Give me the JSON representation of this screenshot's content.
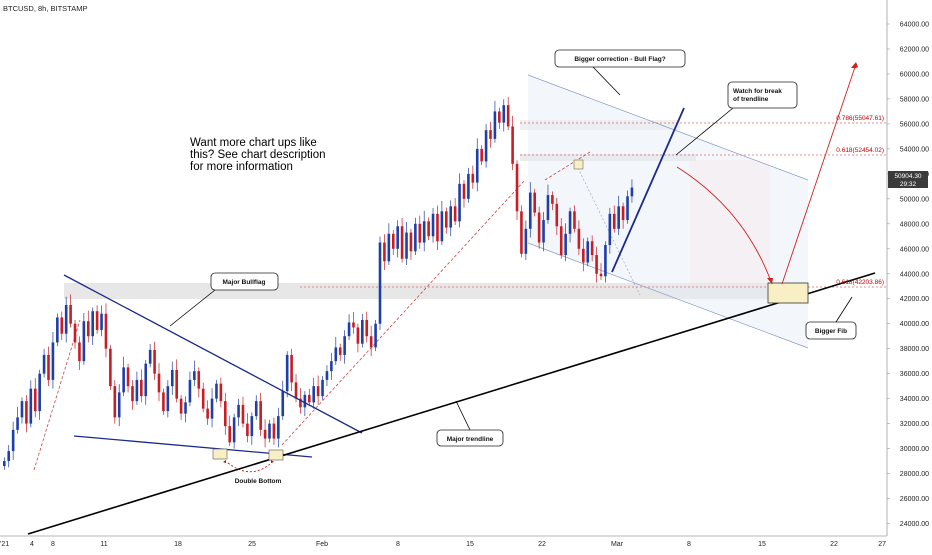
{
  "header": {
    "title": "BTCUSD, 8h, BITSTAMP"
  },
  "headline": [
    "Want more chart ups like",
    "this? See chart description",
    "for more information"
  ],
  "annotations": {
    "bull_flag_question": "Bigger correction - Bull Flag?",
    "watch_break_1": "Watch for break",
    "watch_break_2": "of trendline",
    "major_bullflag": "Major Bullflag",
    "major_trendline": "Major trendline",
    "double_bottom": "Double Bottom",
    "bigger_fib": "Bigger Fib"
  },
  "fib_levels": [
    {
      "label": "0.786(55047.61)",
      "price": 55047.61
    },
    {
      "label": "0.618(52454.02)",
      "price": 52454.02
    },
    {
      "label": "0.618(42203.86)",
      "price": 42203.86
    }
  ],
  "price_tag": {
    "price": "50904.30",
    "countdown": "29:32"
  },
  "colors": {
    "up": "#1f3fa8",
    "down": "#c81d25",
    "trendline": "#000000",
    "flag": "#1b2a8c",
    "fib": "#c40000",
    "tag_bg": "#3b3b3b"
  },
  "chart_data": {
    "type": "candlestick",
    "symbol": "BTCUSD",
    "interval": "8h",
    "exchange": "BITSTAMP",
    "ylim": [
      23000,
      65000
    ],
    "y_ticks": [
      24000,
      26000,
      28000,
      30000,
      32000,
      34000,
      36000,
      38000,
      40000,
      42000,
      44000,
      46000,
      48000,
      50000,
      52000,
      54000,
      56000,
      58000,
      60000,
      62000,
      64000
    ],
    "x_ticks": [
      "'21",
      "4",
      "8",
      "11",
      "18",
      "25",
      "Feb",
      "8",
      "15",
      "22",
      "Mar",
      "8",
      "15",
      "22",
      "27"
    ],
    "last_price": 50904.3,
    "closes": [
      29000,
      29800,
      31500,
      32500,
      33800,
      32000,
      34800,
      33000,
      36000,
      37500,
      35500,
      38500,
      40500,
      39200,
      41500,
      40000,
      38500,
      37000,
      40200,
      39000,
      41000,
      39500,
      40800,
      38000,
      35000,
      32500,
      34500,
      36500,
      35000,
      33800,
      35500,
      34200,
      36800,
      37900,
      36000,
      34500,
      33000,
      35000,
      36300,
      34000,
      32800,
      33700,
      35500,
      36200,
      34800,
      33200,
      32400,
      34000,
      35200,
      33800,
      31800,
      30500,
      32500,
      33500,
      32000,
      31000,
      32600,
      33800,
      31500,
      30800,
      32000,
      30800,
      32600,
      34600,
      37500,
      35300,
      34000,
      33300,
      34300,
      33700,
      35000,
      34200,
      35500,
      36200,
      37000,
      38100,
      37500,
      39000,
      40100,
      39700,
      38400,
      40300,
      39000,
      38100,
      40000,
      46500,
      45000,
      47200,
      46000,
      47800,
      45200,
      47300,
      45800,
      48000,
      46500,
      48200,
      47000,
      48800,
      46600,
      49000,
      47700,
      49400,
      48200,
      51200,
      50000,
      52000,
      51300,
      54000,
      53000,
      55500,
      54800,
      57000,
      56100,
      57500,
      55800,
      52800,
      49000,
      45600,
      47600,
      50500,
      48900,
      46500,
      48300,
      50300,
      49600,
      47800,
      45500,
      47200,
      49000,
      47600,
      46000,
      44900,
      46600,
      45500,
      44000,
      43800,
      46300,
      48800,
      47600,
      49400,
      48300,
      50200,
      50904.3
    ]
  }
}
